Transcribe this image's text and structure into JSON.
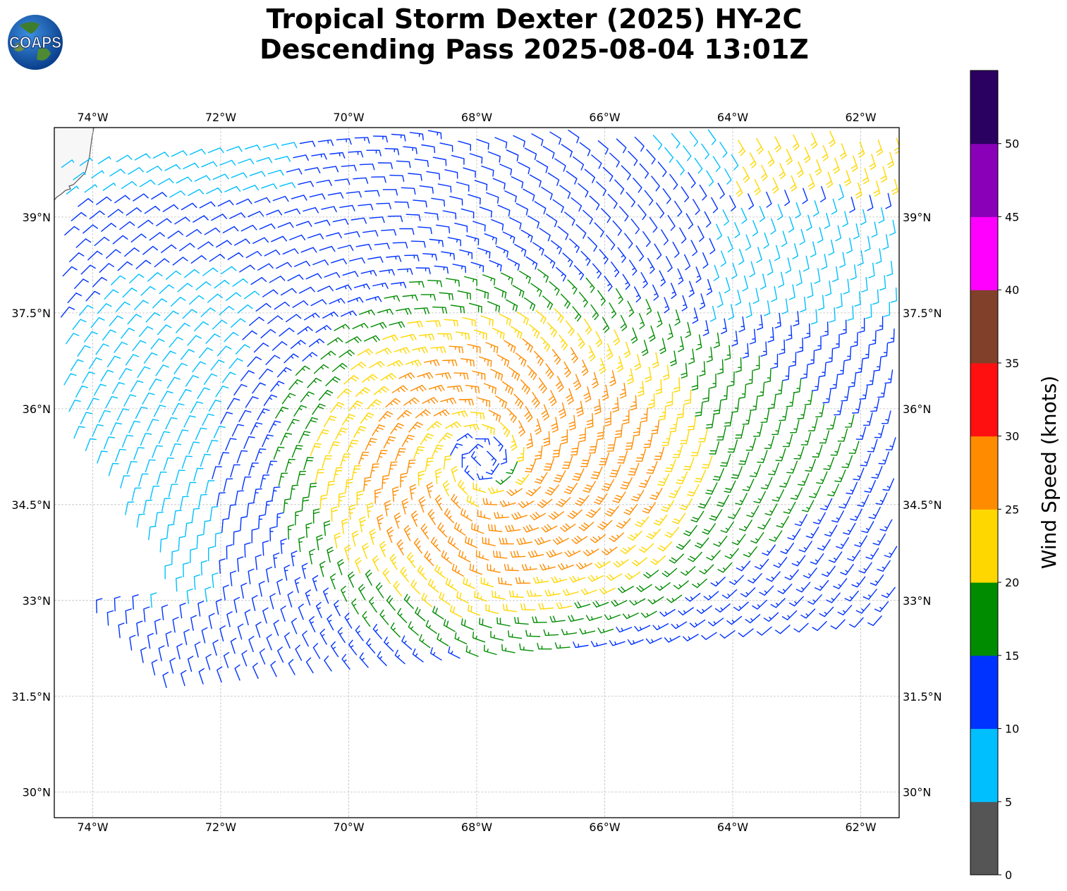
{
  "title": {
    "line1": "Tropical Storm Dexter (2025) HY-2C",
    "line2": "Descending Pass 2025-08-04 13:01Z"
  },
  "logo": {
    "text": "COAPS",
    "icon": "earth-globe-icon"
  },
  "map": {
    "lon_range": [
      -74.6,
      -61.4
    ],
    "lat_range": [
      29.6,
      40.4
    ],
    "lon_ticks": [
      {
        "value": -74,
        "label": "74°W"
      },
      {
        "value": -72,
        "label": "72°W"
      },
      {
        "value": -70,
        "label": "70°W"
      },
      {
        "value": -68,
        "label": "68°W"
      },
      {
        "value": -66,
        "label": "66°W"
      },
      {
        "value": -64,
        "label": "64°W"
      },
      {
        "value": -62,
        "label": "62°W"
      }
    ],
    "lat_ticks": [
      {
        "value": 39,
        "label": "39°N"
      },
      {
        "value": 37.5,
        "label": "37.5°N"
      },
      {
        "value": 36,
        "label": "36°N"
      },
      {
        "value": 34.5,
        "label": "34.5°N"
      },
      {
        "value": 33,
        "label": "33°N"
      },
      {
        "value": 31.5,
        "label": "31.5°N"
      },
      {
        "value": 30,
        "label": "30°N"
      }
    ],
    "gridlines": true,
    "storm_center": {
      "lon": -67.9,
      "lat": 35.2
    },
    "land_color": "#f7f7f7",
    "coast_color": "#555555"
  },
  "colorbar": {
    "label": "Wind Speed (knots)",
    "ticks": [
      "0",
      "5",
      "10",
      "15",
      "20",
      "25",
      "30",
      "35",
      "40",
      "45",
      "50"
    ],
    "bins": [
      {
        "min": 0,
        "max": 5,
        "color": "#555555"
      },
      {
        "min": 5,
        "max": 10,
        "color": "#00bfff"
      },
      {
        "min": 10,
        "max": 15,
        "color": "#0033ff"
      },
      {
        "min": 15,
        "max": 20,
        "color": "#008c00"
      },
      {
        "min": 20,
        "max": 25,
        "color": "#ffd700"
      },
      {
        "min": 25,
        "max": 30,
        "color": "#ff8c00"
      },
      {
        "min": 30,
        "max": 35,
        "color": "#ff1010"
      },
      {
        "min": 35,
        "max": 40,
        "color": "#80402a"
      },
      {
        "min": 40,
        "max": 45,
        "color": "#ff00ff"
      },
      {
        "min": 45,
        "max": 50,
        "color": "#8a00b8"
      },
      {
        "min": 50,
        "max": 55,
        "color": "#2a0060"
      }
    ]
  }
}
